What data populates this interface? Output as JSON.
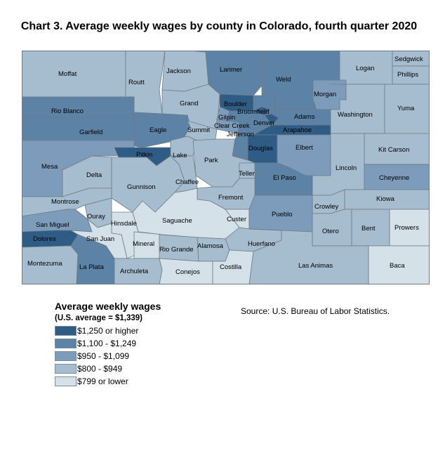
{
  "title": "Chart 3. Average weekly wages by county in Colorado, fourth quarter 2020",
  "source": "Source: U.S. Bureau of Labor Statistics.",
  "legend": {
    "title": "Average weekly wages",
    "note": "(U.S. average = $1,339)",
    "bins": [
      {
        "label": "$1,250 or higher",
        "color": "#2e5c85"
      },
      {
        "label": "$1,100 - $1,249",
        "color": "#5c82a6"
      },
      {
        "label": "$950 - $1,099",
        "color": "#7d9bba"
      },
      {
        "label": "$800 - $949",
        "color": "#a6bccf"
      },
      {
        "label": "$799 or lower",
        "color": "#d5e1e8"
      }
    ]
  },
  "counties": {
    "moffat": "Moffat",
    "routt": "Routt",
    "jackson": "Jackson",
    "larimer": "Larimer",
    "weld": "Weld",
    "logan": "Logan",
    "sedgwick": "Sedgwick",
    "phillips": "Phillips",
    "morgan": "Morgan",
    "rio_blanco": "Rio Blanco",
    "grand": "Grand",
    "boulder": "Boulder",
    "gilpin": "Gilpin",
    "broomfield": "Broomfield",
    "adams": "Adams",
    "washington": "Washington",
    "yuma": "Yuma",
    "garfield": "Garfield",
    "eagle": "Eagle",
    "summit": "Summit",
    "clear_creek": "Clear Creek",
    "denver": "Denver",
    "jefferson": "Jefferson",
    "arapahoe": "Arapahoe",
    "douglas": "Douglas",
    "elbert": "Elbert",
    "kit_carson": "Kit Carson",
    "mesa": "Mesa",
    "pitkin": "Pitkin",
    "lake": "Lake",
    "park": "Park",
    "lincoln": "Lincoln",
    "delta": "Delta",
    "teller": "Teller",
    "cheyenne": "Cheyenne",
    "gunnison": "Gunnison",
    "chaffee": "Chaffee",
    "el_paso": "El Paso",
    "fremont": "Fremont",
    "kiowa": "Kiowa",
    "montrose": "Montrose",
    "crowley": "Crowley",
    "ouray": "Ouray",
    "san_miguel": "San Miguel",
    "hinsdale": "Hinsdale",
    "saguache": "Saguache",
    "custer": "Custer",
    "pueblo": "Pueblo",
    "otero": "Otero",
    "bent": "Bent",
    "prowers": "Prowers",
    "dolores": "Dolores",
    "san_juan": "San Juan",
    "mineral": "Mineral",
    "rio_grande": "Rio Grande",
    "alamosa": "Alamosa",
    "huerfano": "Huerfano",
    "montezuma": "Montezuma",
    "la_plata": "La Plata",
    "archuleta": "Archuleta",
    "conejos": "Conejos",
    "costilla": "Costilla",
    "las_animas": "Las Animas",
    "baca": "Baca"
  },
  "wage_bins": {
    "moffat": 4,
    "routt": 4,
    "jackson": 4,
    "larimer": 2,
    "weld": 2,
    "logan": 4,
    "sedgwick": 4,
    "phillips": 4,
    "morgan": 3,
    "rio_blanco": 2,
    "grand": 4,
    "boulder": 1,
    "gilpin": 3,
    "broomfield": 1,
    "adams": 2,
    "washington": 4,
    "yuma": 4,
    "garfield": 2,
    "eagle": 2,
    "summit": 4,
    "clear_creek": 3,
    "denver": 1,
    "jefferson": 2,
    "arapahoe": 1,
    "douglas": 1,
    "elbert": 3,
    "kit_carson": 4,
    "mesa": 3,
    "pitkin": 1,
    "lake": 4,
    "park": 4,
    "lincoln": 4,
    "delta": 4,
    "teller": 4,
    "cheyenne": 3,
    "gunnison": 4,
    "chaffee": 4,
    "el_paso": 2,
    "fremont": 4,
    "kiowa": 4,
    "montrose": 4,
    "crowley": 4,
    "ouray": 4,
    "san_miguel": 3,
    "hinsdale": 5,
    "saguache": 5,
    "custer": 5,
    "pueblo": 3,
    "otero": 4,
    "bent": 4,
    "prowers": 5,
    "dolores": 1,
    "san_juan": 5,
    "mineral": 5,
    "rio_grande": 4,
    "alamosa": 4,
    "huerfano": 4,
    "montezuma": 4,
    "la_plata": 2,
    "archuleta": 4,
    "conejos": 5,
    "costilla": 5,
    "las_animas": 4,
    "baca": 5
  }
}
